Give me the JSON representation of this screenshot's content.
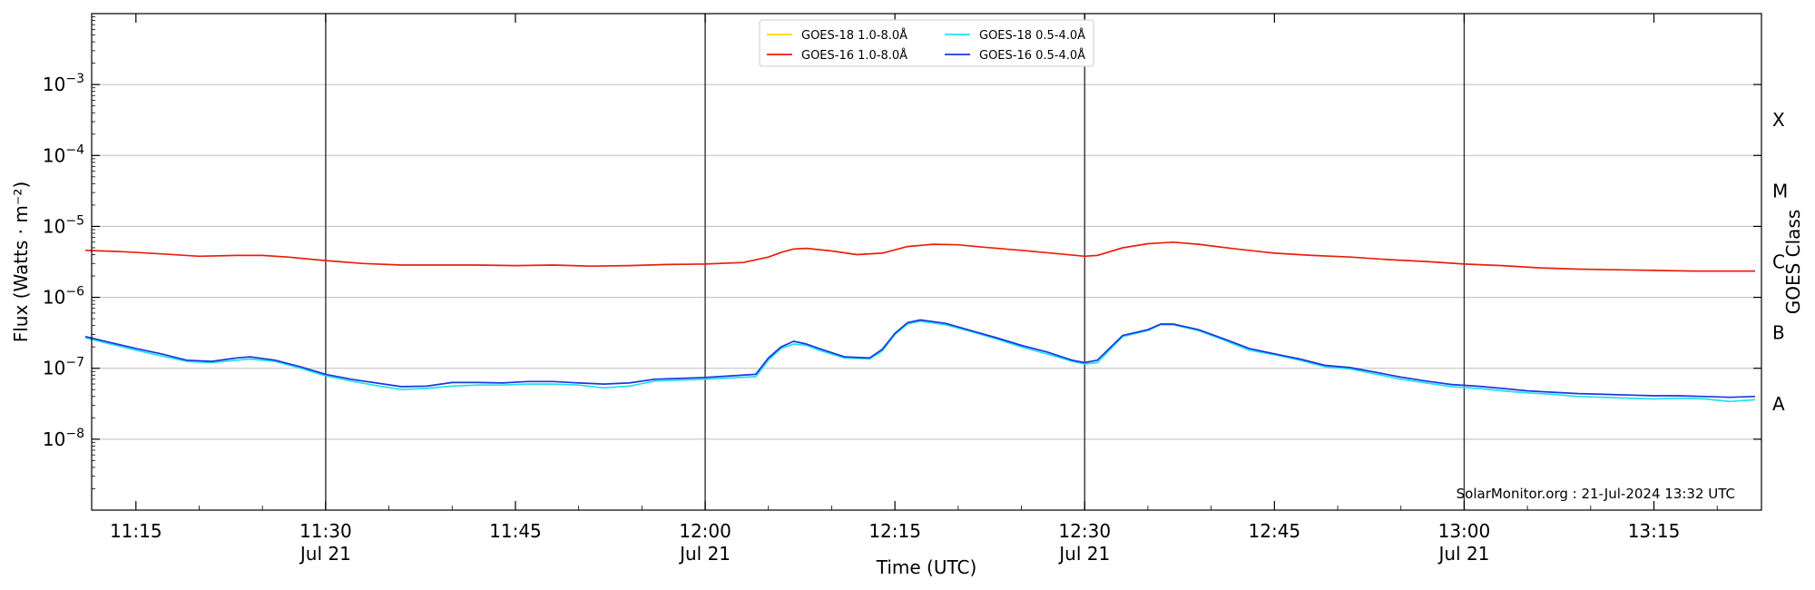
{
  "chart_data": {
    "type": "line",
    "xlabel": "Time (UTC)",
    "ylabel": "Flux (Watts · m⁻²)",
    "y2label": "GOES Class",
    "yscale": "log",
    "ylim": [
      1e-09,
      0.01
    ],
    "xlim": [
      "11:11:30",
      "13:23:30"
    ],
    "grid": "horizontal at decades, vertical at half hours",
    "legend_position": "top-center",
    "x_ticks": [
      {
        "time": "11:15",
        "label": "11:15",
        "sublabel": ""
      },
      {
        "time": "11:30",
        "label": "11:30",
        "sublabel": "Jul 21"
      },
      {
        "time": "11:45",
        "label": "11:45",
        "sublabel": ""
      },
      {
        "time": "12:00",
        "label": "12:00",
        "sublabel": "Jul 21"
      },
      {
        "time": "12:15",
        "label": "12:15",
        "sublabel": ""
      },
      {
        "time": "12:30",
        "label": "12:30",
        "sublabel": "Jul 21"
      },
      {
        "time": "12:45",
        "label": "12:45",
        "sublabel": ""
      },
      {
        "time": "13:00",
        "label": "13:00",
        "sublabel": "Jul 21"
      },
      {
        "time": "13:15",
        "label": "13:15",
        "sublabel": ""
      }
    ],
    "vertical_lines": [
      "11:30",
      "12:00",
      "12:30",
      "13:00"
    ],
    "y_ticks": [
      {
        "value": 1e-08,
        "base": "10",
        "exp": "−8"
      },
      {
        "value": 1e-07,
        "base": "10",
        "exp": "−7"
      },
      {
        "value": 1e-06,
        "base": "10",
        "exp": "−6"
      },
      {
        "value": 1e-05,
        "base": "10",
        "exp": "−5"
      },
      {
        "value": 0.0001,
        "base": "10",
        "exp": "−4"
      },
      {
        "value": 0.001,
        "base": "10",
        "exp": "−3"
      }
    ],
    "goes_classes": [
      {
        "label": "A",
        "value": 3.16e-08
      },
      {
        "label": "B",
        "value": 3.16e-07
      },
      {
        "label": "C",
        "value": 3.16e-06
      },
      {
        "label": "M",
        "value": 3.16e-05
      },
      {
        "label": "X",
        "value": 0.000316
      }
    ],
    "series": [
      {
        "name": "GOES-18 1.0-8.0Å",
        "color": "#ffd700",
        "points": []
      },
      {
        "name": "GOES-16 1.0-8.0Å",
        "color": "#e8200c",
        "points": [
          [
            "11:11",
            4.6e-06
          ],
          [
            "11:14",
            4.4e-06
          ],
          [
            "11:17",
            4.1e-06
          ],
          [
            "11:20",
            3.8e-06
          ],
          [
            "11:23",
            3.9e-06
          ],
          [
            "11:25",
            3.9e-06
          ],
          [
            "11:27",
            3.7e-06
          ],
          [
            "11:30",
            3.3e-06
          ],
          [
            "11:33",
            3e-06
          ],
          [
            "11:36",
            2.85e-06
          ],
          [
            "11:39",
            2.85e-06
          ],
          [
            "11:42",
            2.85e-06
          ],
          [
            "11:45",
            2.8e-06
          ],
          [
            "11:48",
            2.85e-06
          ],
          [
            "11:51",
            2.75e-06
          ],
          [
            "11:54",
            2.8e-06
          ],
          [
            "11:57",
            2.9e-06
          ],
          [
            "12:00",
            2.95e-06
          ],
          [
            "12:03",
            3.1e-06
          ],
          [
            "12:05",
            3.7e-06
          ],
          [
            "12:06",
            4.3e-06
          ],
          [
            "12:07",
            4.8e-06
          ],
          [
            "12:08",
            4.9e-06
          ],
          [
            "12:10",
            4.5e-06
          ],
          [
            "12:12",
            4e-06
          ],
          [
            "12:14",
            4.2e-06
          ],
          [
            "12:16",
            5.2e-06
          ],
          [
            "12:18",
            5.6e-06
          ],
          [
            "12:20",
            5.5e-06
          ],
          [
            "12:22",
            5.1e-06
          ],
          [
            "12:25",
            4.6e-06
          ],
          [
            "12:28",
            4.1e-06
          ],
          [
            "12:30",
            3.8e-06
          ],
          [
            "12:31",
            3.9e-06
          ],
          [
            "12:33",
            5e-06
          ],
          [
            "12:35",
            5.7e-06
          ],
          [
            "12:37",
            6e-06
          ],
          [
            "12:39",
            5.6e-06
          ],
          [
            "12:42",
            4.8e-06
          ],
          [
            "12:45",
            4.2e-06
          ],
          [
            "12:48",
            3.9e-06
          ],
          [
            "12:51",
            3.7e-06
          ],
          [
            "12:54",
            3.4e-06
          ],
          [
            "12:57",
            3.2e-06
          ],
          [
            "13:00",
            2.95e-06
          ],
          [
            "13:03",
            2.8e-06
          ],
          [
            "13:06",
            2.6e-06
          ],
          [
            "13:09",
            2.5e-06
          ],
          [
            "13:12",
            2.45e-06
          ],
          [
            "13:15",
            2.4e-06
          ],
          [
            "13:18",
            2.35e-06
          ],
          [
            "13:21",
            2.35e-06
          ],
          [
            "13:23",
            2.35e-06
          ]
        ]
      },
      {
        "name": "GOES-18 0.5-4.0Å",
        "color": "#22e0f0",
        "points": [
          [
            "11:11",
            2.7e-07
          ],
          [
            "11:13",
            2.2e-07
          ],
          [
            "11:15",
            1.8e-07
          ],
          [
            "11:17",
            1.5e-07
          ],
          [
            "11:19",
            1.25e-07
          ],
          [
            "11:21",
            1.2e-07
          ],
          [
            "11:23",
            1.3e-07
          ],
          [
            "11:24",
            1.35e-07
          ],
          [
            "11:26",
            1.25e-07
          ],
          [
            "11:28",
            1e-07
          ],
          [
            "11:30",
            7.8e-08
          ],
          [
            "11:32",
            6.6e-08
          ],
          [
            "11:34",
            5.7e-08
          ],
          [
            "11:36",
            5e-08
          ],
          [
            "11:38",
            5.2e-08
          ],
          [
            "11:40",
            5.6e-08
          ],
          [
            "11:42",
            5.8e-08
          ],
          [
            "11:44",
            5.8e-08
          ],
          [
            "11:46",
            6e-08
          ],
          [
            "11:48",
            6e-08
          ],
          [
            "11:50",
            5.8e-08
          ],
          [
            "11:52",
            5.3e-08
          ],
          [
            "11:54",
            5.6e-08
          ],
          [
            "11:56",
            6.6e-08
          ],
          [
            "11:58",
            6.8e-08
          ],
          [
            "12:00",
            7e-08
          ],
          [
            "12:02",
            7.3e-08
          ],
          [
            "12:04",
            7.6e-08
          ],
          [
            "12:05",
            1.3e-07
          ],
          [
            "12:06",
            1.9e-07
          ],
          [
            "12:07",
            2.2e-07
          ],
          [
            "12:08",
            2.1e-07
          ],
          [
            "12:09",
            1.8e-07
          ],
          [
            "12:11",
            1.4e-07
          ],
          [
            "12:13",
            1.35e-07
          ],
          [
            "12:14",
            1.75e-07
          ],
          [
            "12:15",
            3e-07
          ],
          [
            "12:16",
            4.2e-07
          ],
          [
            "12:17",
            4.6e-07
          ],
          [
            "12:19",
            4.1e-07
          ],
          [
            "12:21",
            3.3e-07
          ],
          [
            "12:23",
            2.6e-07
          ],
          [
            "12:25",
            2e-07
          ],
          [
            "12:27",
            1.6e-07
          ],
          [
            "12:29",
            1.25e-07
          ],
          [
            "12:30",
            1.15e-07
          ],
          [
            "12:31",
            1.2e-07
          ],
          [
            "12:33",
            2.8e-07
          ],
          [
            "12:35",
            3.4e-07
          ],
          [
            "12:36",
            4.1e-07
          ],
          [
            "12:37",
            4.1e-07
          ],
          [
            "12:39",
            3.4e-07
          ],
          [
            "12:41",
            2.5e-07
          ],
          [
            "12:43",
            1.8e-07
          ],
          [
            "12:45",
            1.55e-07
          ],
          [
            "12:47",
            1.3e-07
          ],
          [
            "12:49",
            1.05e-07
          ],
          [
            "12:51",
            9.8e-08
          ],
          [
            "12:53",
            8.3e-08
          ],
          [
            "12:55",
            7e-08
          ],
          [
            "12:57",
            6.2e-08
          ],
          [
            "12:59",
            5.5e-08
          ],
          [
            "13:01",
            5.2e-08
          ],
          [
            "13:03",
            4.8e-08
          ],
          [
            "13:05",
            4.5e-08
          ],
          [
            "13:07",
            4.3e-08
          ],
          [
            "13:09",
            4e-08
          ],
          [
            "13:11",
            3.9e-08
          ],
          [
            "13:13",
            3.8e-08
          ],
          [
            "13:15",
            3.7e-08
          ],
          [
            "13:17",
            3.8e-08
          ],
          [
            "13:19",
            3.7e-08
          ],
          [
            "13:21",
            3.4e-08
          ],
          [
            "13:23",
            3.6e-08
          ]
        ]
      },
      {
        "name": "GOES-16 0.5-4.0Å",
        "color": "#1838e0",
        "points": [
          [
            "11:11",
            2.8e-07
          ],
          [
            "11:13",
            2.3e-07
          ],
          [
            "11:15",
            1.9e-07
          ],
          [
            "11:17",
            1.6e-07
          ],
          [
            "11:19",
            1.3e-07
          ],
          [
            "11:21",
            1.25e-07
          ],
          [
            "11:23",
            1.4e-07
          ],
          [
            "11:24",
            1.45e-07
          ],
          [
            "11:26",
            1.3e-07
          ],
          [
            "11:28",
            1.05e-07
          ],
          [
            "11:30",
            8.2e-08
          ],
          [
            "11:32",
            7e-08
          ],
          [
            "11:34",
            6.2e-08
          ],
          [
            "11:36",
            5.5e-08
          ],
          [
            "11:38",
            5.6e-08
          ],
          [
            "11:40",
            6.3e-08
          ],
          [
            "11:42",
            6.3e-08
          ],
          [
            "11:44",
            6.2e-08
          ],
          [
            "11:46",
            6.5e-08
          ],
          [
            "11:48",
            6.5e-08
          ],
          [
            "11:50",
            6.2e-08
          ],
          [
            "11:52",
            6e-08
          ],
          [
            "11:54",
            6.2e-08
          ],
          [
            "11:56",
            7e-08
          ],
          [
            "11:58",
            7.2e-08
          ],
          [
            "12:00",
            7.4e-08
          ],
          [
            "12:02",
            7.8e-08
          ],
          [
            "12:04",
            8.2e-08
          ],
          [
            "12:05",
            1.4e-07
          ],
          [
            "12:06",
            2e-07
          ],
          [
            "12:07",
            2.4e-07
          ],
          [
            "12:08",
            2.2e-07
          ],
          [
            "12:09",
            1.9e-07
          ],
          [
            "12:11",
            1.45e-07
          ],
          [
            "12:13",
            1.4e-07
          ],
          [
            "12:14",
            1.85e-07
          ],
          [
            "12:15",
            3.1e-07
          ],
          [
            "12:16",
            4.4e-07
          ],
          [
            "12:17",
            4.8e-07
          ],
          [
            "12:19",
            4.3e-07
          ],
          [
            "12:21",
            3.4e-07
          ],
          [
            "12:23",
            2.7e-07
          ],
          [
            "12:25",
            2.1e-07
          ],
          [
            "12:27",
            1.7e-07
          ],
          [
            "12:29",
            1.3e-07
          ],
          [
            "12:30",
            1.2e-07
          ],
          [
            "12:31",
            1.3e-07
          ],
          [
            "12:33",
            2.9e-07
          ],
          [
            "12:35",
            3.5e-07
          ],
          [
            "12:36",
            4.2e-07
          ],
          [
            "12:37",
            4.2e-07
          ],
          [
            "12:39",
            3.5e-07
          ],
          [
            "12:41",
            2.6e-07
          ],
          [
            "12:43",
            1.9e-07
          ],
          [
            "12:45",
            1.6e-07
          ],
          [
            "12:47",
            1.35e-07
          ],
          [
            "12:49",
            1.1e-07
          ],
          [
            "12:51",
            1.02e-07
          ],
          [
            "12:53",
            8.8e-08
          ],
          [
            "12:55",
            7.5e-08
          ],
          [
            "12:57",
            6.6e-08
          ],
          [
            "12:59",
            5.9e-08
          ],
          [
            "13:01",
            5.6e-08
          ],
          [
            "13:03",
            5.2e-08
          ],
          [
            "13:05",
            4.8e-08
          ],
          [
            "13:07",
            4.6e-08
          ],
          [
            "13:09",
            4.4e-08
          ],
          [
            "13:11",
            4.3e-08
          ],
          [
            "13:13",
            4.2e-08
          ],
          [
            "13:15",
            4.1e-08
          ],
          [
            "13:17",
            4.1e-08
          ],
          [
            "13:19",
            4e-08
          ],
          [
            "13:21",
            3.9e-08
          ],
          [
            "13:23",
            4e-08
          ]
        ]
      }
    ],
    "annotation": "SolarMonitor.org : 21-Jul-2024 13:32 UTC"
  }
}
